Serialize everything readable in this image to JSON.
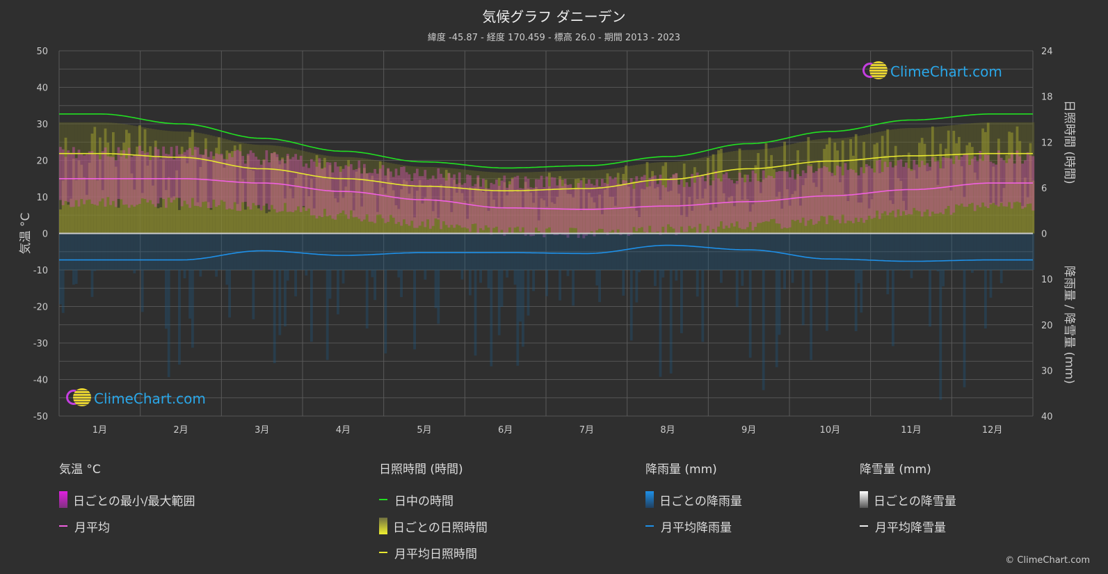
{
  "header": {
    "title": "気候グラフ ダニーデン",
    "subtitle": "緯度 -45.87 - 経度 170.459 - 標高 26.0 - 期間 2013 - 2023"
  },
  "logo_text": "ClimeChart.com",
  "copyright": "© ClimeChart.com",
  "colors": {
    "daylight": "#22e022",
    "sunshine": "#e8e830",
    "temp_mean": "#f060e0",
    "rain": "#1e90e8",
    "temp_range": "#d040c0",
    "snow": "#ffffff",
    "background": "#2f2f2f"
  },
  "chart_data": {
    "type": "line",
    "categories": [
      "1月",
      "2月",
      "3月",
      "4月",
      "5月",
      "6月",
      "7月",
      "8月",
      "9月",
      "10月",
      "11月",
      "12月"
    ],
    "left_axis": {
      "label": "気温 °C",
      "ylim": [
        -50,
        50
      ],
      "ticks": [
        50,
        40,
        30,
        20,
        10,
        0,
        -10,
        -20,
        -30,
        -40,
        -50
      ]
    },
    "right_axis_top": {
      "label": "日照時間 (時間)",
      "ylim": [
        0,
        24
      ],
      "ticks": [
        24,
        18,
        12,
        6,
        0
      ]
    },
    "right_axis_bottom": {
      "label": "降雨量 / 降雪量 (mm)",
      "ylim": [
        0,
        40
      ],
      "ticks": [
        0,
        10,
        20,
        30,
        40
      ]
    },
    "grid": true,
    "series": [
      {
        "name": "日中の時間",
        "axis": "hours",
        "values": [
          15.7,
          14.4,
          12.5,
          10.8,
          9.4,
          8.6,
          8.9,
          10.1,
          11.8,
          13.4,
          14.9,
          15.7
        ]
      },
      {
        "name": "月平均日照時間",
        "axis": "hours",
        "values": [
          10.5,
          10.0,
          8.5,
          7.2,
          6.2,
          5.6,
          5.9,
          7.1,
          8.5,
          9.5,
          10.2,
          10.5
        ]
      },
      {
        "name": "月平均",
        "axis": "temperature",
        "values": [
          15.0,
          15.0,
          13.8,
          11.5,
          9.2,
          7.0,
          6.6,
          7.5,
          8.7,
          10.3,
          12.0,
          13.8
        ]
      },
      {
        "name": "月平均降雨量",
        "axis": "mm",
        "values": [
          5.8,
          5.8,
          3.8,
          4.8,
          4.2,
          4.2,
          4.4,
          2.6,
          3.6,
          5.6,
          6.1,
          5.8
        ]
      },
      {
        "name": "月平均降雪量",
        "axis": "mm",
        "values": [
          0,
          0,
          0,
          0,
          0,
          0,
          0,
          0,
          0,
          0,
          0,
          0
        ]
      }
    ]
  },
  "legend": {
    "temp": {
      "title": "気温 °C",
      "range": "日ごとの最小/最大範囲",
      "mean": "月平均"
    },
    "sun": {
      "title": "日照時間 (時間)",
      "daylight": "日中の時間",
      "daily": "日ごとの日照時間",
      "mean": "月平均日照時間"
    },
    "rain": {
      "title": "降雨量 (mm)",
      "daily": "日ごとの降雨量",
      "mean": "月平均降雨量"
    },
    "snow": {
      "title": "降雪量 (mm)",
      "daily": "日ごとの降雪量",
      "mean": "月平均降雪量"
    }
  }
}
